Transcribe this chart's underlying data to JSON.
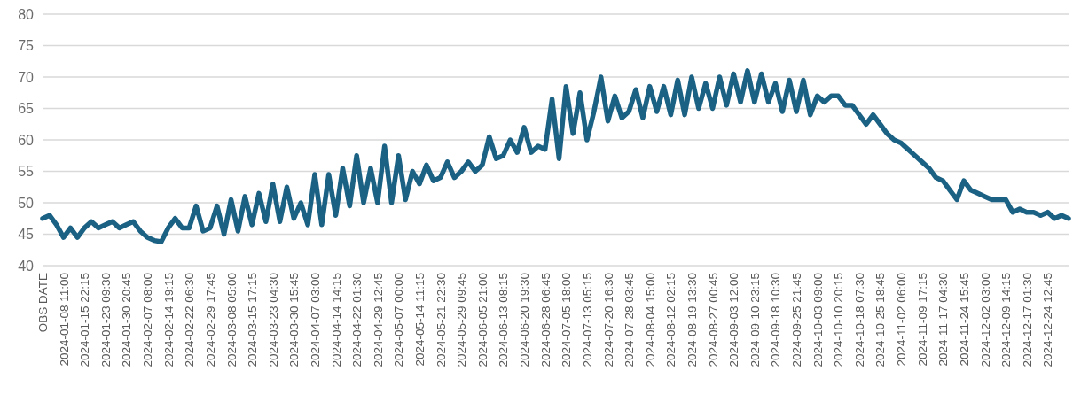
{
  "chart_data": {
    "type": "line",
    "categories": [
      "OBS DATE",
      null,
      null,
      "2024-01-08 11:00",
      null,
      null,
      "2024-01-15 22:15",
      null,
      null,
      "2024-01-23 09:30",
      null,
      null,
      "2024-01-30 20:45",
      null,
      null,
      "2024-02-07 08:00",
      null,
      null,
      "2024-02-14 19:15",
      null,
      null,
      "2024-02-22 06:30",
      null,
      null,
      "2024-02-29 17:45",
      null,
      null,
      "2024-03-08 05:00",
      null,
      null,
      "2024-03-15 17:15",
      null,
      null,
      "2024-03-23 04:30",
      null,
      null,
      "2024-03-30 15:45",
      null,
      null,
      "2024-04-07 03:00",
      null,
      null,
      "2024-04-14 14:15",
      null,
      null,
      "2024-04-22 01:30",
      null,
      null,
      "2024-04-29 12:45",
      null,
      null,
      "2024-05-07 00:00",
      null,
      null,
      "2024-05-14 11:15",
      null,
      null,
      "2024-05-21 22:30",
      null,
      null,
      "2024-05-29 09:45",
      null,
      null,
      "2024-06-05 21:00",
      null,
      null,
      "2024-06-13 08:15",
      null,
      null,
      "2024-06-20 19:30",
      null,
      null,
      "2024-06-28 06:45",
      null,
      null,
      "2024-07-05 18:00",
      null,
      null,
      "2024-07-13 05:15",
      null,
      null,
      "2024-07-20 16:30",
      null,
      null,
      "2024-07-28 03:45",
      null,
      null,
      "2024-08-04 15:00",
      null,
      null,
      "2024-08-12 02:15",
      null,
      null,
      "2024-08-19 13:30",
      null,
      null,
      "2024-08-27 00:45",
      null,
      null,
      "2024-09-03 12:00",
      null,
      null,
      "2024-09-10 23:15",
      null,
      null,
      "2024-09-18 10:30",
      null,
      null,
      "2024-09-25 21:45",
      null,
      null,
      "2024-10-03 09:00",
      null,
      null,
      "2024-10-10 20:15",
      null,
      null,
      "2024-10-18 07:30",
      null,
      null,
      "2024-10-25 18:45",
      null,
      null,
      "2024-11-02 06:00",
      null,
      null,
      "2024-11-09 17:15",
      null,
      null,
      "2024-11-17 04:30",
      null,
      null,
      "2024-11-24 15:45",
      null,
      null,
      "2024-12-02 03:00",
      null,
      null,
      "2024-12-09 14:15",
      null,
      null,
      "2024-12-17 01:30",
      null,
      null,
      "2024-12-24 12:45",
      null,
      null,
      null
    ],
    "series": [
      {
        "color": "#1a6184",
        "values": [
          47.5,
          48,
          46.5,
          44.5,
          46,
          44.5,
          46,
          47,
          46,
          46.5,
          47,
          46,
          46.5,
          47,
          45.5,
          44.5,
          44,
          43.8,
          46,
          47.5,
          46,
          46,
          49.5,
          45.5,
          46,
          49.5,
          45,
          50.5,
          45.5,
          51,
          46.5,
          51.5,
          47,
          53,
          47,
          52.5,
          47.5,
          50,
          46.5,
          54.5,
          46.5,
          54.5,
          48,
          55.5,
          49.5,
          57.5,
          50,
          55.5,
          50,
          59,
          50,
          57.5,
          50.5,
          55,
          53,
          56,
          53.5,
          54,
          56.5,
          54,
          55,
          56.5,
          55,
          56,
          60.5,
          57,
          57.5,
          60,
          58,
          62,
          58,
          59,
          58.5,
          66.5,
          57,
          68.5,
          61,
          67.5,
          60,
          64.5,
          70,
          63,
          67,
          63.5,
          64.5,
          68,
          63.5,
          68.5,
          64.5,
          68.5,
          64,
          69.5,
          64,
          70,
          65,
          69,
          65,
          70,
          65.5,
          70.5,
          66,
          71,
          66,
          70.5,
          66,
          69,
          64.5,
          69.5,
          64.5,
          69.5,
          64,
          67,
          66,
          67,
          67,
          65.5,
          65.5,
          64,
          62.5,
          64,
          62.5,
          61,
          60,
          59.5,
          58.5,
          57.5,
          56.5,
          55.5,
          54,
          53.5,
          52,
          50.5,
          53.5,
          52,
          51.5,
          51,
          50.5,
          50.5,
          50.5,
          48.5,
          49,
          48.5,
          48.5,
          48,
          48.5,
          47.5,
          48,
          47.5
        ]
      }
    ],
    "ylim": [
      40,
      80
    ],
    "yticks": [
      40,
      45,
      50,
      55,
      60,
      65,
      70,
      75,
      80
    ],
    "grid": "y",
    "marker": "none",
    "line_style": "solid"
  }
}
